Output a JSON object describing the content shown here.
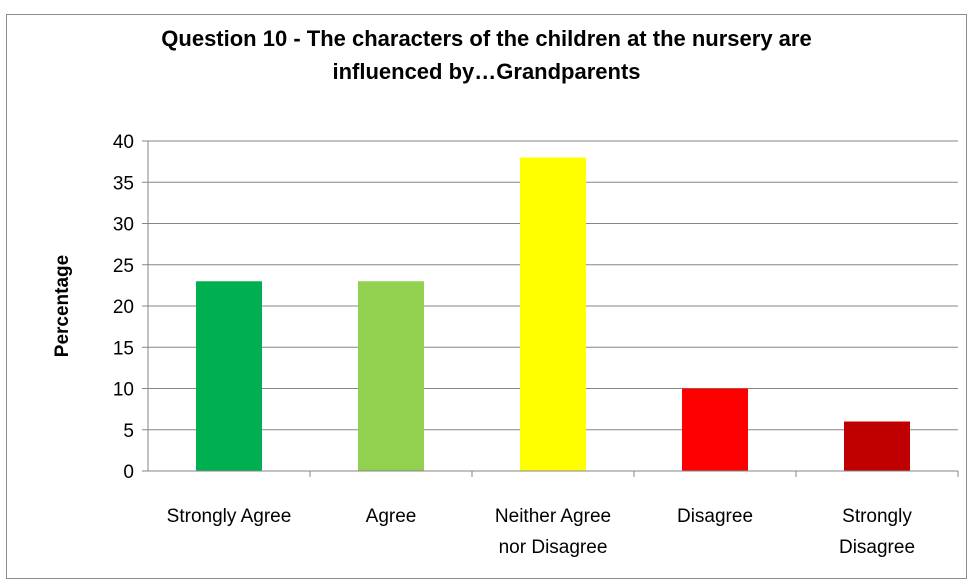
{
  "chart_data": {
    "type": "bar",
    "title_lines": [
      "Question 10 - The characters of the children at the nursery are",
      "influenced by…Grandparents"
    ],
    "xlabel": "",
    "ylabel": "Percentage",
    "ylim": [
      0,
      40
    ],
    "yticks": [
      0,
      5,
      10,
      15,
      20,
      25,
      30,
      35,
      40
    ],
    "grid": true,
    "legend": "none",
    "categories": [
      [
        "Strongly Agree"
      ],
      [
        "Agree"
      ],
      [
        "Neither Agree",
        "nor Disagree"
      ],
      [
        "Disagree"
      ],
      [
        "Strongly",
        "Disagree"
      ]
    ],
    "values": [
      23,
      23,
      38,
      10,
      6
    ],
    "colors": [
      "#00b050",
      "#92d050",
      "#ffff00",
      "#ff0000",
      "#c00000"
    ]
  }
}
